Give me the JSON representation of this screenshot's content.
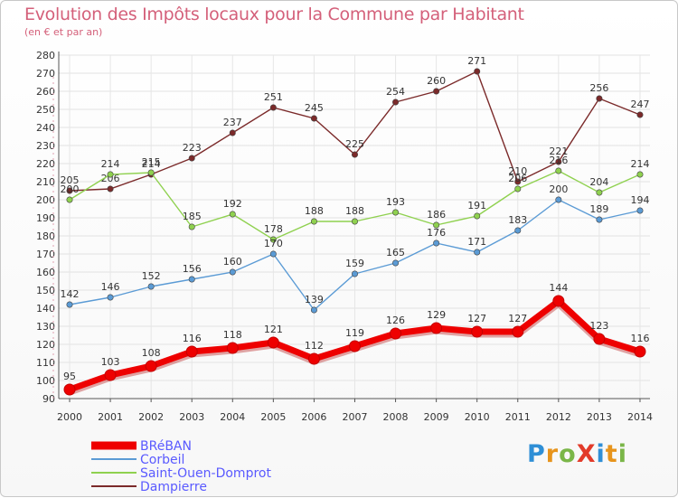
{
  "title": "Evolution des Impôts locaux pour la Commune par Habitant",
  "subtitle": "(en € et par an)",
  "logo": {
    "text": "ProXiti",
    "letters": [
      "P",
      "r",
      "o",
      "X",
      "i",
      "t",
      "i"
    ],
    "colors": [
      "#2f8fd6",
      "#e7941c",
      "#7ab648",
      "#e23b2a",
      "#2f8fd6",
      "#e7941c",
      "#7ab648"
    ]
  },
  "chart_data": {
    "type": "line",
    "title": "Evolution des Impôts locaux pour la Commune par Habitant",
    "subtitle": "(en € et par an)",
    "ylim": [
      90,
      280
    ],
    "ytick_step": 10,
    "x": [
      2000,
      2001,
      2002,
      2003,
      2004,
      2005,
      2006,
      2007,
      2008,
      2009,
      2010,
      2011,
      2012,
      2013,
      2014
    ],
    "series": [
      {
        "name": "BRéBAN",
        "color": "#ee0000",
        "values": [
          95,
          103,
          108,
          116,
          118,
          121,
          112,
          119,
          126,
          129,
          127,
          127,
          144,
          123,
          116
        ]
      },
      {
        "name": "Corbeil",
        "color": "#5b9bd5",
        "values": [
          142,
          146,
          152,
          156,
          160,
          170,
          139,
          159,
          165,
          176,
          171,
          183,
          200,
          189,
          194
        ]
      },
      {
        "name": "Saint-Ouen-Domprot",
        "color": "#8fd14f",
        "values": [
          200,
          214,
          215,
          185,
          192,
          178,
          188,
          188,
          193,
          186,
          191,
          206,
          216,
          204,
          214
        ]
      },
      {
        "name": "Dampierre",
        "color": "#7b2a2a",
        "values": [
          205,
          206,
          214,
          223,
          237,
          251,
          245,
          225,
          254,
          260,
          271,
          210,
          221,
          256,
          247
        ]
      }
    ],
    "grid": true,
    "legend_position": "bottom-left"
  }
}
